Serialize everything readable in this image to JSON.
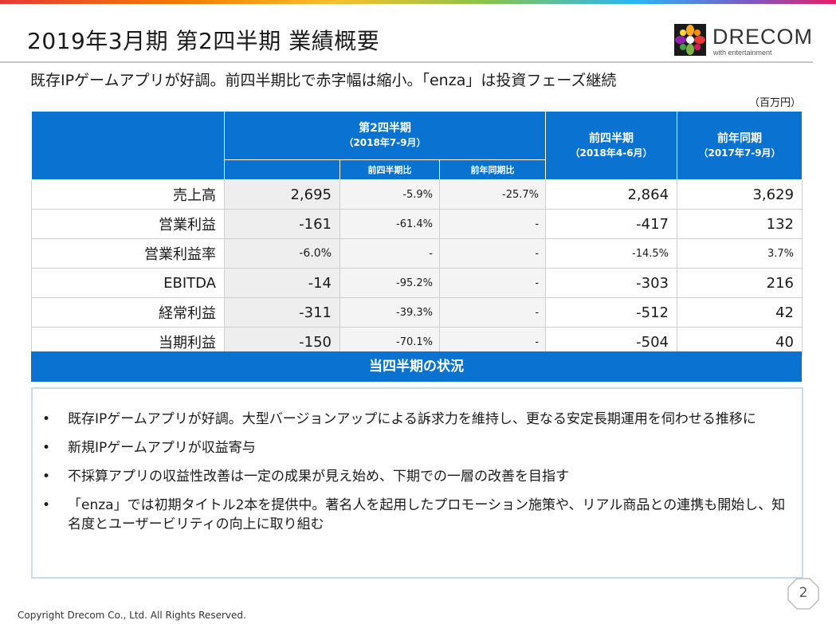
{
  "header": {
    "title": "2019年3月期 第2四半期 業績概要",
    "subtitle": "既存IPゲームアプリが好調。前四半期比で赤字幅は縮小。「enza」は投資フェーズ継続"
  },
  "logo": {
    "name": "DRECOM",
    "tagline": "with entertainment"
  },
  "table": {
    "unit": "（百万円）",
    "col_q2_title": "第2四半期",
    "col_q2_period": "（2018年7-9月）",
    "col_qoq": "前四半期比",
    "col_yoy": "前年同期比",
    "col_prev_title": "前四半期",
    "col_prev_period": "（2018年4-6月）",
    "col_ly_title": "前年同期",
    "col_ly_period": "（2017年7-9月）",
    "rows": [
      {
        "label": "売上高",
        "q2": "2,695",
        "qoq": "-5.9%",
        "yoy": "-25.7%",
        "prev": "2,864",
        "ly": "3,629"
      },
      {
        "label": "営業利益",
        "q2": "-161",
        "qoq": "-61.4%",
        "yoy": "-",
        "prev": "-417",
        "ly": "132"
      },
      {
        "label": "営業利益率",
        "q2": "-6.0%",
        "qoq": "-",
        "yoy": "-",
        "prev": "-14.5%",
        "ly": "3.7%"
      },
      {
        "label": "EBITDA",
        "q2": "-14",
        "qoq": "-95.2%",
        "yoy": "-",
        "prev": "-303",
        "ly": "216"
      },
      {
        "label": "経常利益",
        "q2": "-311",
        "qoq": "-39.3%",
        "yoy": "-",
        "prev": "-512",
        "ly": "42"
      },
      {
        "label": "当期利益",
        "q2": "-150",
        "qoq": "-70.1%",
        "yoy": "-",
        "prev": "-504",
        "ly": "40"
      }
    ]
  },
  "situation": {
    "title": "当四半期の状況",
    "bullet": "•",
    "items": [
      "既存IPゲームアプリが好調。大型バージョンアップによる訴求力を維持し、更なる安定長期運用を伺わせる推移に",
      "新規IPゲームアプリが収益寄与",
      "不採算アプリの収益性改善は一定の成果が見え始め、下期での一層の改善を目指す",
      "「enza」では初期タイトル2本を提供中。著名人を起用したプロモーション施策や、リアル商品との連携も開始し、知名度とユーザービリティの向上に取り組む"
    ]
  },
  "footer": {
    "copyright": "Copyright Drecom Co., Ltd. All Rights Reserved.",
    "page": "2"
  },
  "colors": {
    "accent": "#0a72d1",
    "box_border": "#c9dcea"
  }
}
